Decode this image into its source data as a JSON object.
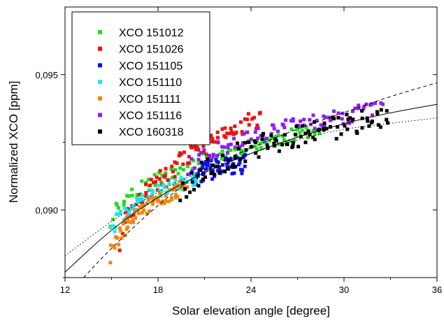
{
  "chart_data": {
    "type": "scatter",
    "xlabel": "Solar elevation angle [degree]",
    "ylabel": "Normalized XCO [ppm]",
    "xlim": [
      12,
      36
    ],
    "ylim": [
      0.0875,
      0.0975
    ],
    "x_ticks": [
      12,
      18,
      24,
      30,
      36
    ],
    "x_tick_labels": [
      "12",
      "18",
      "24",
      "30",
      "36"
    ],
    "y_ticks": [
      0.09,
      0.095
    ],
    "y_tick_labels": [
      "0,090",
      "0,095"
    ],
    "legend_position": "top-left",
    "series": [
      {
        "name": "XCO 151012",
        "color": "#22dd22",
        "x_range": [
          15.0,
          28.4
        ],
        "y_start": 0.0895,
        "y_end": 0.093,
        "noise": 0.00025,
        "count": 95,
        "seed": 11
      },
      {
        "name": "XCO 151026",
        "color": "#ee1111",
        "x_range": [
          15.6,
          24.6
        ],
        "y_start": 0.0886,
        "y_end": 0.0934,
        "noise": 0.00035,
        "count": 90,
        "seed": 23
      },
      {
        "name": "XCO 151105",
        "color": "#1111ee",
        "x_range": [
          20.5,
          23.6
        ],
        "y_start": 0.0912,
        "y_end": 0.0917,
        "noise": 0.00035,
        "count": 60,
        "seed": 37
      },
      {
        "name": "XCO 151110",
        "color": "#22e5ee",
        "x_range": [
          15.0,
          20.6
        ],
        "y_start": 0.0891,
        "y_end": 0.0912,
        "noise": 0.00025,
        "count": 65,
        "seed": 41
      },
      {
        "name": "XCO 151111",
        "color": "#ee8811",
        "x_range": [
          15.0,
          19.8
        ],
        "y_start": 0.0883,
        "y_end": 0.0909,
        "noise": 0.0003,
        "count": 70,
        "seed": 53
      },
      {
        "name": "XCO 151116",
        "color": "#8822ee",
        "x_range": [
          20.0,
          32.4
        ],
        "y_start": 0.0914,
        "y_end": 0.0937,
        "noise": 0.0003,
        "count": 85,
        "seed": 67
      },
      {
        "name": "XCO 160318",
        "color": "#000000",
        "x_range": [
          19.5,
          32.9
        ],
        "y_start": 0.0904,
        "y_end": 0.0935,
        "noise": 0.00045,
        "count": 110,
        "seed": 79
      }
    ],
    "fit_lines": [
      {
        "style": "solid",
        "points": [
          [
            12,
            0.0877
          ],
          [
            15,
            0.0893
          ],
          [
            18,
            0.0905
          ],
          [
            21,
            0.0914
          ],
          [
            24,
            0.0921
          ],
          [
            27,
            0.0927
          ],
          [
            30,
            0.0932
          ],
          [
            33,
            0.0936
          ],
          [
            36,
            0.0939
          ]
        ]
      },
      {
        "style": "dashed",
        "points": [
          [
            13.2,
            0.0875
          ],
          [
            15,
            0.0886
          ],
          [
            18,
            0.0902
          ],
          [
            21,
            0.0915
          ],
          [
            24,
            0.0923
          ],
          [
            27,
            0.093
          ],
          [
            30,
            0.0936
          ],
          [
            33,
            0.0942
          ],
          [
            36,
            0.0947
          ]
        ]
      },
      {
        "style": "dotted",
        "points": [
          [
            12,
            0.0883
          ],
          [
            15,
            0.0896
          ],
          [
            18,
            0.0907
          ],
          [
            21,
            0.0915
          ],
          [
            24,
            0.0921
          ],
          [
            27,
            0.0926
          ],
          [
            30,
            0.093
          ],
          [
            33,
            0.0932
          ],
          [
            36,
            0.0934
          ]
        ]
      }
    ]
  }
}
